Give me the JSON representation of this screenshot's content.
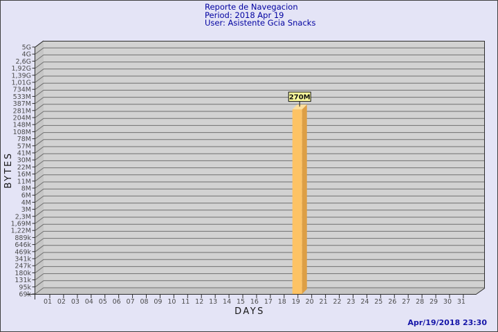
{
  "header": {
    "title": "Reporte de Navegacion",
    "period": "Period: 2018 Apr 19",
    "user": "User: Asistente Gcia Snacks"
  },
  "footer": {
    "timestamp": "Apr/19/2018 23:30"
  },
  "chart_data": {
    "type": "bar",
    "title": "Reporte de Navegacion",
    "xlabel": "DAYS",
    "ylabel": "BYTES",
    "y_scale": "log",
    "y_axis_top_value": 5000000000,
    "y_axis_bottom_value": 69000,
    "y_tick_labels": [
      "5G",
      "4G",
      "2,6G",
      "1,92G",
      "1,39G",
      "1,01G",
      "734M",
      "533M",
      "387M",
      "281M",
      "204M",
      "148M",
      "108M",
      "78M",
      "57M",
      "41M",
      "30M",
      "22M",
      "16M",
      "11M",
      "8M",
      "6M",
      "4M",
      "3M",
      "2,3M",
      "1,69M",
      "1,22M",
      "889k",
      "646k",
      "469k",
      "341k",
      "247k",
      "180k",
      "131k",
      "95k",
      "69k"
    ],
    "categories": [
      "01",
      "02",
      "03",
      "04",
      "05",
      "06",
      "07",
      "08",
      "09",
      "10",
      "11",
      "12",
      "13",
      "14",
      "15",
      "16",
      "17",
      "18",
      "19",
      "20",
      "21",
      "22",
      "23",
      "24",
      "25",
      "26",
      "27",
      "28",
      "29",
      "30",
      "31"
    ],
    "series": [
      {
        "name": "Bytes",
        "values": [
          0,
          0,
          0,
          0,
          0,
          0,
          0,
          0,
          0,
          0,
          0,
          0,
          0,
          0,
          0,
          0,
          0,
          0,
          270000000,
          0,
          0,
          0,
          0,
          0,
          0,
          0,
          0,
          0,
          0,
          0,
          0
        ]
      }
    ],
    "annotations": [
      {
        "day": "19",
        "label": "270M",
        "value": 270000000
      }
    ],
    "legend": "none",
    "grid": "horizontal"
  },
  "colors": {
    "title_text": "#0000a0",
    "timestamp_text": "#1515a8",
    "bar_front": "#fdc365",
    "bar_side": "#dd9f45",
    "bar_top": "#fcdf9e",
    "value_label_bg": "#fafa9c",
    "plot_face": "#d2d2d2",
    "plot_wall": "#c6c6c6",
    "page_bg": "#e4e4f6"
  }
}
